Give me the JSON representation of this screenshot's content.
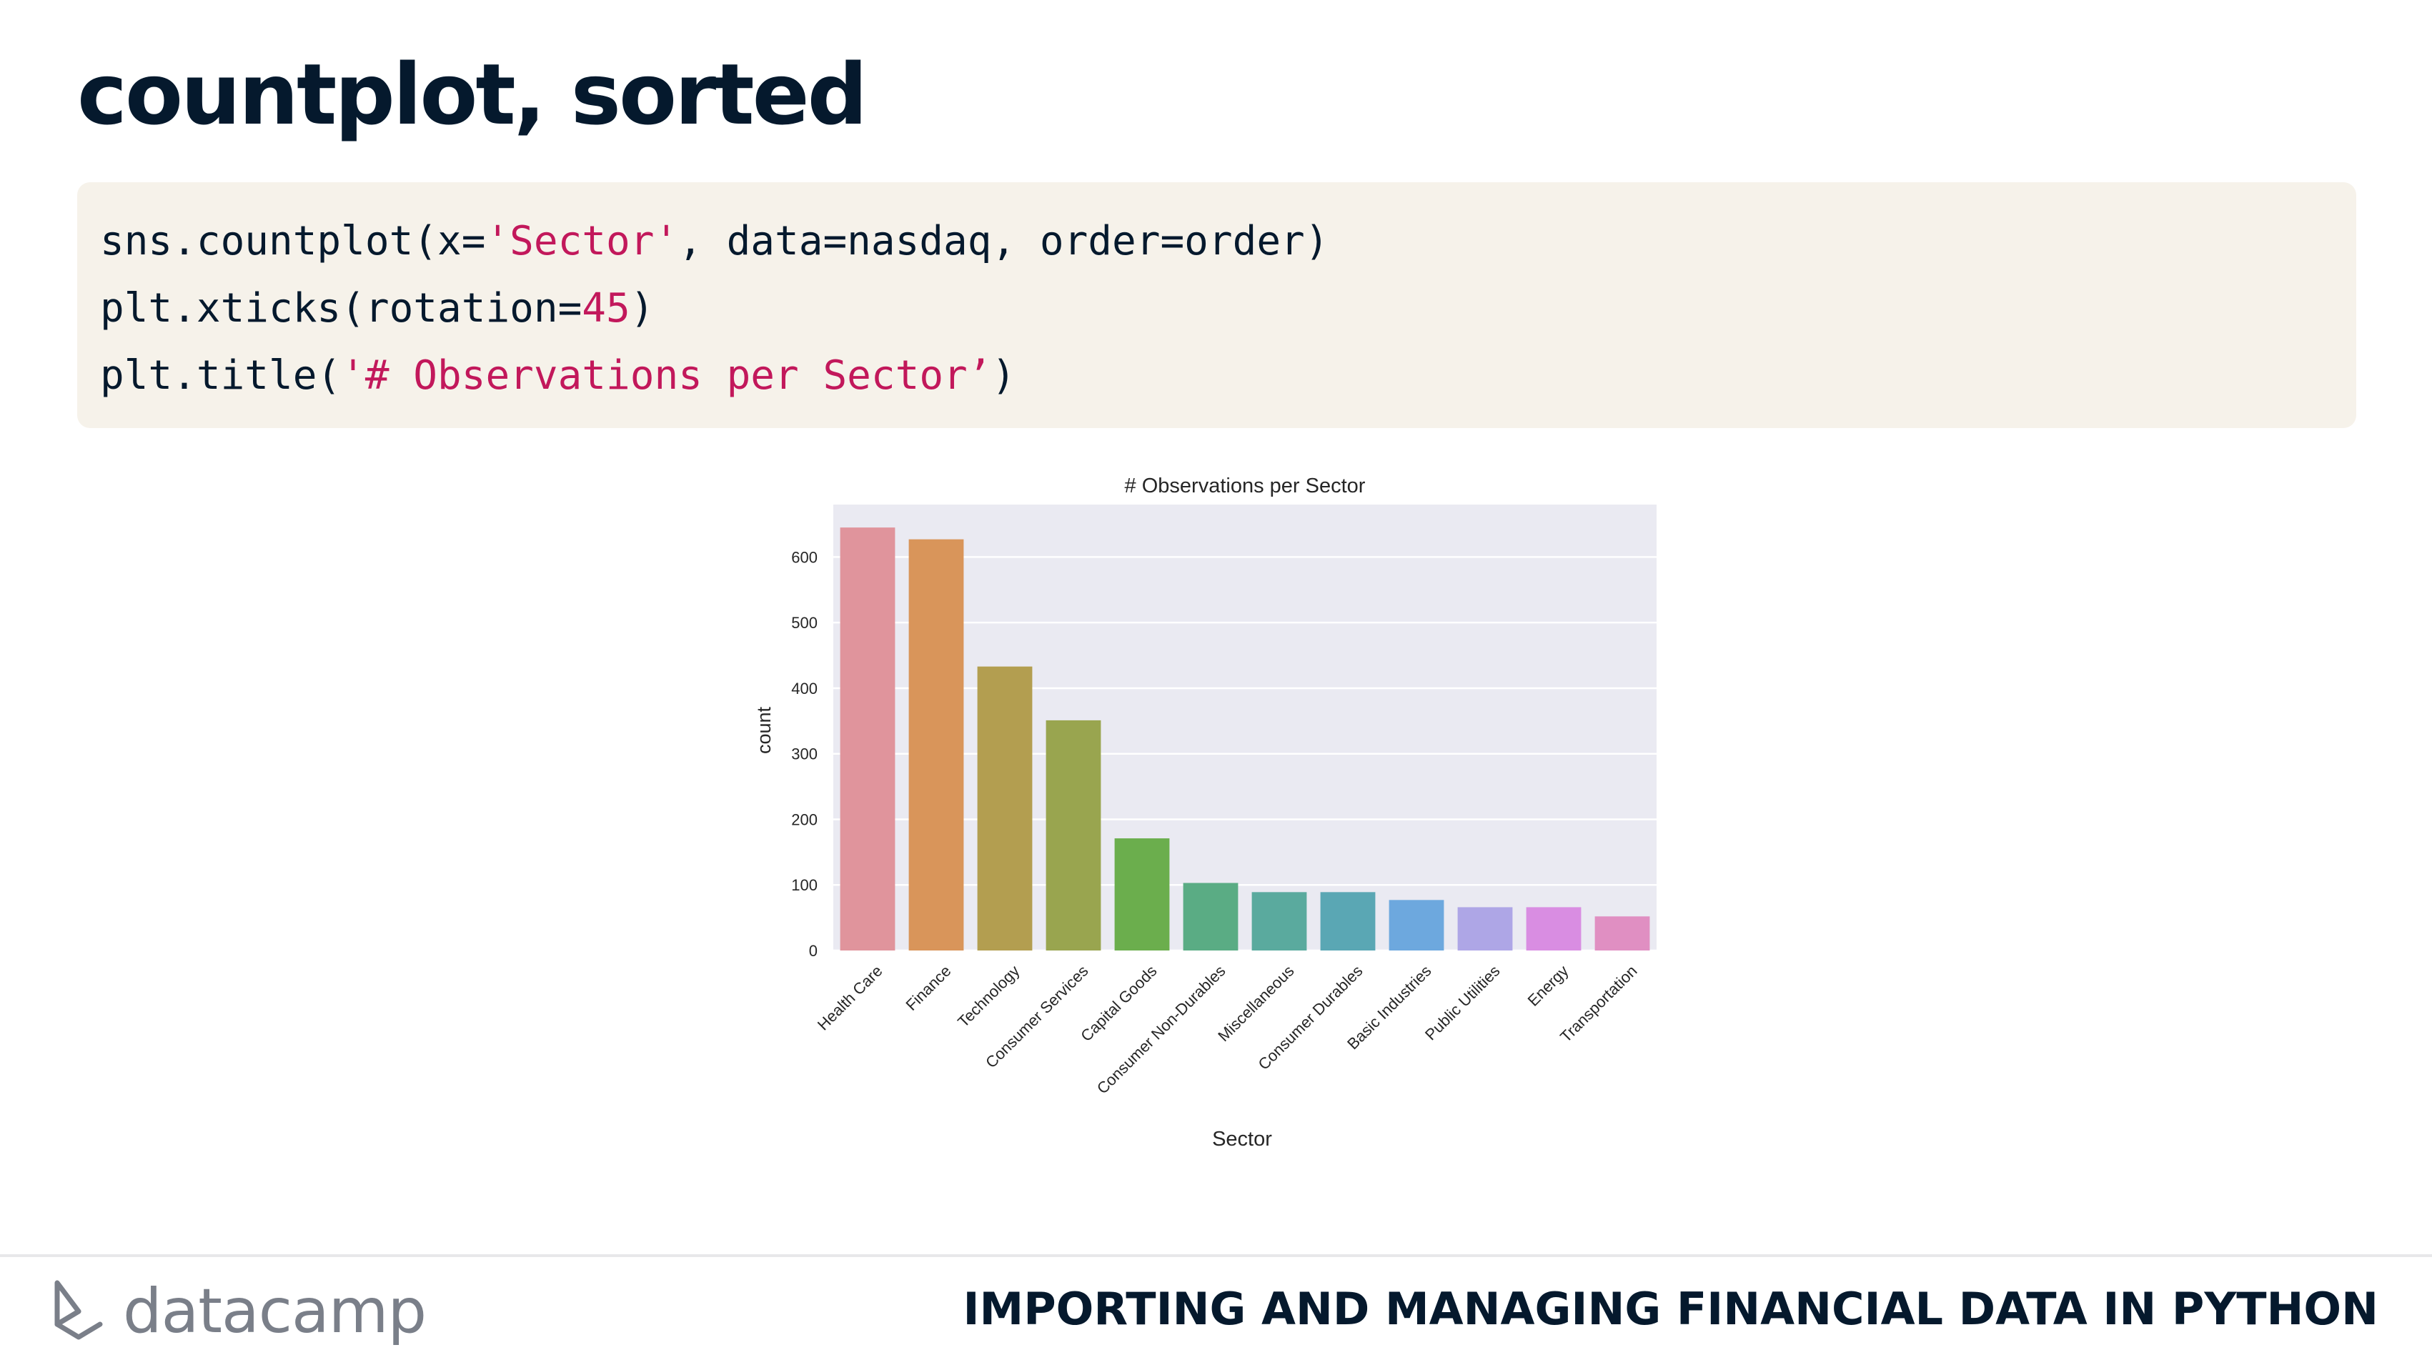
{
  "slide": {
    "title": "countplot, sorted"
  },
  "code": {
    "line1": {
      "a": "sns.countplot(x=",
      "b": "'Sector'",
      "c": ", data=nasdaq, order=order)"
    },
    "line2": {
      "a": "plt.xticks(rotation=",
      "b": "45",
      "c": ")"
    },
    "line3": {
      "a": "plt.title(",
      "b": "'# Observations per Sector’",
      "c": ")"
    }
  },
  "chart_data": {
    "type": "bar",
    "title": "# Observations per Sector",
    "xlabel": "Sector",
    "ylabel": "count",
    "ylim": [
      0,
      680
    ],
    "yticks": [
      0,
      100,
      200,
      300,
      400,
      500,
      600
    ],
    "categories": [
      "Health Care",
      "Finance",
      "Technology",
      "Consumer Services",
      "Capital Goods",
      "Consumer Non-Durables",
      "Miscellaneous",
      "Consumer Durables",
      "Basic Industries",
      "Public Utilities",
      "Energy",
      "Transportation"
    ],
    "values": [
      645,
      627,
      433,
      351,
      171,
      103,
      89,
      89,
      77,
      66,
      66,
      52
    ],
    "colors": [
      "#e0949c",
      "#d9955a",
      "#b39e50",
      "#99a54f",
      "#6bae4d",
      "#5aac84",
      "#5aaa9e",
      "#5aa7b4",
      "#6da8de",
      "#aea6e6",
      "#d98de2",
      "#e08fc2"
    ],
    "grid": true,
    "plot_background": "#eaeaf2"
  },
  "footer": {
    "brand": "datacamp",
    "course": "IMPORTING AND MANAGING FINANCIAL DATA IN PYTHON"
  }
}
